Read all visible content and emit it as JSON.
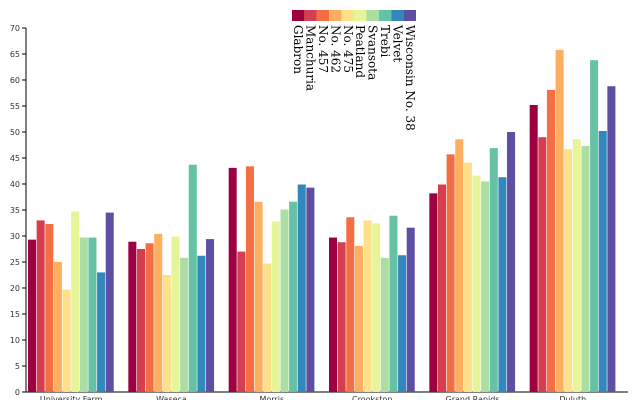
{
  "chart_data": {
    "type": "bar",
    "title": "",
    "xlabel": "",
    "ylabel": "",
    "ylim": [
      0,
      70
    ],
    "yticks": [
      0,
      5,
      10,
      15,
      20,
      25,
      30,
      35,
      40,
      45,
      50,
      55,
      60,
      65,
      70
    ],
    "grid": false,
    "legend_position": "top-center",
    "categories": [
      "University Farm",
      "Waseca",
      "Morris",
      "Crookston",
      "Grand Rapids",
      "Duluth"
    ],
    "series": [
      {
        "name": "Glabron",
        "color": "#9e0142",
        "values": [
          29.3,
          28.9,
          43.1,
          29.7,
          38.2,
          55.2
        ]
      },
      {
        "name": "Manchuria",
        "color": "#d53e4f",
        "values": [
          33.0,
          27.5,
          27.0,
          28.8,
          39.9,
          49.0
        ]
      },
      {
        "name": "No. 457",
        "color": "#f46d43",
        "values": [
          32.3,
          28.6,
          43.4,
          33.6,
          45.7,
          58.1
        ]
      },
      {
        "name": "No. 462",
        "color": "#fdae61",
        "values": [
          25.0,
          30.4,
          36.6,
          28.1,
          48.6,
          65.8
        ]
      },
      {
        "name": "No. 475",
        "color": "#fee08b",
        "values": [
          19.7,
          22.5,
          24.7,
          33.0,
          44.1,
          46.7
        ]
      },
      {
        "name": "Peatland",
        "color": "#e6f598",
        "values": [
          34.7,
          29.9,
          32.8,
          32.4,
          41.6,
          48.6
        ]
      },
      {
        "name": "Svansota",
        "color": "#abdda4",
        "values": [
          29.7,
          25.8,
          35.1,
          25.8,
          40.5,
          47.3
        ]
      },
      {
        "name": "Trebi",
        "color": "#66c2a5",
        "values": [
          29.7,
          43.7,
          36.6,
          33.9,
          46.9,
          63.8
        ]
      },
      {
        "name": "Velvet",
        "color": "#3288bd",
        "values": [
          23.0,
          26.2,
          39.9,
          26.3,
          41.3,
          50.2
        ]
      },
      {
        "name": "Wisconsin No. 38",
        "color": "#5e4fa2",
        "values": [
          34.5,
          29.4,
          39.3,
          31.6,
          50.0,
          58.8
        ]
      }
    ]
  }
}
